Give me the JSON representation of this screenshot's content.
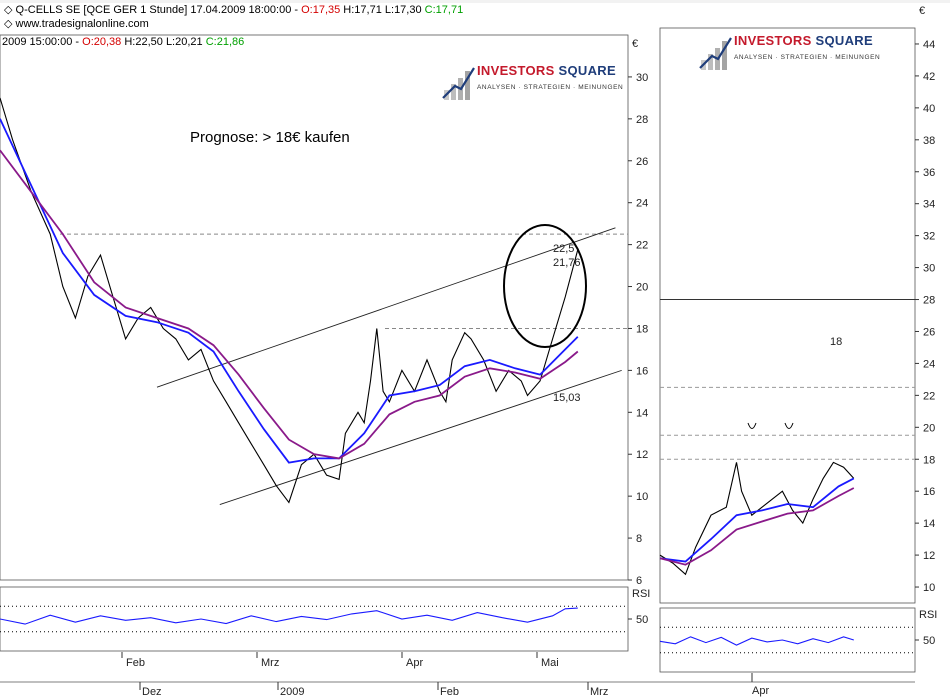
{
  "chart_data": [
    {
      "type": "line",
      "title": "Q-CELLS SE [QCE GER  1 Stunde] 17.04.2009 18:00:00 -",
      "ohlc": {
        "open": "O:17,35",
        "high": "H:17,71",
        "low": "L:17,30",
        "close": "C:17,71"
      },
      "website": "www.tradesignalonline.com",
      "subheader": {
        "date": "2009 15:00:00 -",
        "open": "O:20,38",
        "high": "H:22,50",
        "low": "L:20,21",
        "close": "C:21,86"
      },
      "annotation": "Prognose: > 18€ kaufen",
      "currency": "€",
      "y_ticks": [
        "6",
        "8",
        "10",
        "12",
        "14",
        "16",
        "18",
        "20",
        "22",
        "24",
        "26",
        "28",
        "30"
      ],
      "x_ticks": [
        "Feb",
        "Mrz",
        "Apr",
        "Mai"
      ],
      "x_ticks_bottom": [
        "Dez",
        "2009",
        "Feb",
        "Mrz",
        "Apr"
      ],
      "ylim": [
        6,
        32
      ],
      "price_labels": [
        "22,5",
        "21,76",
        "15,03"
      ],
      "levels": [
        22.5,
        18
      ],
      "channel_upper": [
        [
          0.25,
          15.2
        ],
        [
          0.98,
          22.8
        ]
      ],
      "channel_lower": [
        [
          0.35,
          9.6
        ],
        [
          0.99,
          16.0
        ]
      ],
      "series": [
        {
          "name": "Price",
          "color": "#000000",
          "values": [
            [
              0.0,
              29.0
            ],
            [
              0.02,
              27.0
            ],
            [
              0.05,
              24.5
            ],
            [
              0.08,
              22.5
            ],
            [
              0.1,
              20.0
            ],
            [
              0.12,
              18.5
            ],
            [
              0.14,
              20.5
            ],
            [
              0.16,
              21.5
            ],
            [
              0.18,
              19.5
            ],
            [
              0.2,
              17.5
            ],
            [
              0.22,
              18.5
            ],
            [
              0.24,
              19.0
            ],
            [
              0.26,
              18.0
            ],
            [
              0.28,
              17.5
            ],
            [
              0.3,
              16.5
            ],
            [
              0.32,
              17.0
            ],
            [
              0.34,
              15.5
            ],
            [
              0.36,
              14.5
            ],
            [
              0.38,
              13.5
            ],
            [
              0.4,
              12.5
            ],
            [
              0.42,
              11.5
            ],
            [
              0.44,
              10.5
            ],
            [
              0.46,
              9.7
            ],
            [
              0.48,
              11.5
            ],
            [
              0.5,
              12.0
            ],
            [
              0.52,
              11.0
            ],
            [
              0.54,
              10.8
            ],
            [
              0.55,
              13.0
            ],
            [
              0.57,
              14.0
            ],
            [
              0.58,
              13.5
            ],
            [
              0.59,
              15.5
            ],
            [
              0.6,
              18.0
            ],
            [
              0.61,
              15.0
            ],
            [
              0.62,
              14.5
            ],
            [
              0.64,
              16.0
            ],
            [
              0.66,
              15.0
            ],
            [
              0.68,
              16.5
            ],
            [
              0.7,
              15.0
            ],
            [
              0.71,
              14.5
            ],
            [
              0.72,
              16.5
            ],
            [
              0.74,
              17.8
            ],
            [
              0.75,
              17.5
            ],
            [
              0.77,
              16.5
            ],
            [
              0.79,
              15.0
            ],
            [
              0.81,
              16.0
            ],
            [
              0.83,
              15.5
            ],
            [
              0.84,
              14.8
            ],
            [
              0.86,
              15.5
            ],
            [
              0.88,
              17.5
            ],
            [
              0.9,
              19.5
            ],
            [
              0.92,
              21.76
            ]
          ]
        },
        {
          "name": "MA fast",
          "color": "#1a1aff",
          "values": [
            [
              0.0,
              28.0
            ],
            [
              0.05,
              24.8
            ],
            [
              0.1,
              21.6
            ],
            [
              0.15,
              19.6
            ],
            [
              0.2,
              18.6
            ],
            [
              0.25,
              18.3
            ],
            [
              0.3,
              17.8
            ],
            [
              0.34,
              16.9
            ],
            [
              0.38,
              15.0
            ],
            [
              0.42,
              13.2
            ],
            [
              0.46,
              11.6
            ],
            [
              0.5,
              11.8
            ],
            [
              0.54,
              11.8
            ],
            [
              0.58,
              13.0
            ],
            [
              0.62,
              14.8
            ],
            [
              0.66,
              15.0
            ],
            [
              0.7,
              15.3
            ],
            [
              0.74,
              16.2
            ],
            [
              0.78,
              16.5
            ],
            [
              0.82,
              16.1
            ],
            [
              0.86,
              15.8
            ],
            [
              0.9,
              17.0
            ],
            [
              0.92,
              17.6
            ]
          ]
        },
        {
          "name": "MA slow",
          "color": "#8a1a8a",
          "values": [
            [
              0.0,
              26.5
            ],
            [
              0.05,
              24.5
            ],
            [
              0.1,
              22.5
            ],
            [
              0.15,
              20.2
            ],
            [
              0.2,
              19.0
            ],
            [
              0.25,
              18.5
            ],
            [
              0.3,
              18.0
            ],
            [
              0.34,
              17.2
            ],
            [
              0.38,
              15.8
            ],
            [
              0.42,
              14.2
            ],
            [
              0.46,
              12.7
            ],
            [
              0.5,
              12.0
            ],
            [
              0.54,
              11.8
            ],
            [
              0.58,
              12.5
            ],
            [
              0.62,
              13.9
            ],
            [
              0.66,
              14.5
            ],
            [
              0.7,
              14.8
            ],
            [
              0.74,
              15.7
            ],
            [
              0.78,
              16.1
            ],
            [
              0.82,
              15.9
            ],
            [
              0.86,
              15.6
            ],
            [
              0.9,
              16.4
            ],
            [
              0.92,
              16.9
            ]
          ]
        }
      ]
    },
    {
      "type": "line",
      "title": "RSI",
      "y_ticks": [
        "50"
      ],
      "ylim": [
        0,
        100
      ],
      "series": [
        {
          "name": "RSI",
          "color": "#1a1aff",
          "values": [
            [
              0.0,
              50
            ],
            [
              0.04,
              42
            ],
            [
              0.08,
              56
            ],
            [
              0.12,
              45
            ],
            [
              0.16,
              55
            ],
            [
              0.2,
              48
            ],
            [
              0.24,
              52
            ],
            [
              0.28,
              44
            ],
            [
              0.32,
              50
            ],
            [
              0.36,
              43
            ],
            [
              0.4,
              55
            ],
            [
              0.44,
              46
            ],
            [
              0.48,
              54
            ],
            [
              0.52,
              49
            ],
            [
              0.56,
              58
            ],
            [
              0.6,
              63
            ],
            [
              0.64,
              50
            ],
            [
              0.68,
              56
            ],
            [
              0.72,
              48
            ],
            [
              0.76,
              60
            ],
            [
              0.8,
              52
            ],
            [
              0.84,
              45
            ],
            [
              0.88,
              55
            ],
            [
              0.9,
              66
            ],
            [
              0.92,
              67
            ]
          ]
        }
      ]
    },
    {
      "type": "line",
      "currency": "€",
      "y_ticks": [
        "10",
        "12",
        "14",
        "16",
        "18",
        "20",
        "22",
        "24",
        "26",
        "28",
        "30",
        "32",
        "34",
        "36",
        "38",
        "40",
        "42",
        "44"
      ],
      "x_ticks": [
        "Apr"
      ],
      "ylim": [
        9,
        45
      ],
      "levels": [
        28,
        22.5,
        19.5,
        18
      ],
      "price_labels": [
        "18"
      ],
      "series": [
        {
          "name": "Price",
          "color": "#000000",
          "values": [
            [
              0.0,
              12.0
            ],
            [
              0.05,
              11.5
            ],
            [
              0.1,
              10.8
            ],
            [
              0.14,
              12.5
            ],
            [
              0.2,
              14.5
            ],
            [
              0.26,
              15.0
            ],
            [
              0.3,
              17.8
            ],
            [
              0.32,
              16.0
            ],
            [
              0.36,
              14.5
            ],
            [
              0.4,
              15.0
            ],
            [
              0.44,
              15.5
            ],
            [
              0.48,
              16.0
            ],
            [
              0.52,
              14.8
            ],
            [
              0.56,
              14.0
            ],
            [
              0.6,
              15.5
            ],
            [
              0.64,
              16.8
            ],
            [
              0.68,
              17.8
            ],
            [
              0.72,
              17.5
            ],
            [
              0.76,
              16.8
            ]
          ]
        },
        {
          "name": "MA fast",
          "color": "#1a1aff",
          "values": [
            [
              0.0,
              11.8
            ],
            [
              0.1,
              11.6
            ],
            [
              0.2,
              13.0
            ],
            [
              0.3,
              14.5
            ],
            [
              0.4,
              14.8
            ],
            [
              0.5,
              15.2
            ],
            [
              0.6,
              15.0
            ],
            [
              0.7,
              16.3
            ],
            [
              0.76,
              16.8
            ]
          ]
        },
        {
          "name": "MA slow",
          "color": "#8a1a8a",
          "values": [
            [
              0.0,
              11.8
            ],
            [
              0.1,
              11.4
            ],
            [
              0.2,
              12.3
            ],
            [
              0.3,
              13.6
            ],
            [
              0.4,
              14.1
            ],
            [
              0.5,
              14.6
            ],
            [
              0.6,
              14.8
            ],
            [
              0.7,
              15.7
            ],
            [
              0.76,
              16.2
            ]
          ]
        }
      ]
    },
    {
      "type": "line",
      "title": "RSI",
      "y_ticks": [
        "50"
      ],
      "ylim": [
        0,
        100
      ],
      "series": [
        {
          "name": "RSI",
          "color": "#1a1aff",
          "values": [
            [
              0.0,
              48
            ],
            [
              0.06,
              44
            ],
            [
              0.12,
              55
            ],
            [
              0.18,
              46
            ],
            [
              0.24,
              54
            ],
            [
              0.3,
              42
            ],
            [
              0.36,
              53
            ],
            [
              0.42,
              47
            ],
            [
              0.48,
              50
            ],
            [
              0.54,
              44
            ],
            [
              0.6,
              52
            ],
            [
              0.66,
              46
            ],
            [
              0.72,
              55
            ],
            [
              0.76,
              50
            ]
          ]
        }
      ]
    }
  ],
  "logo": {
    "name": "INVESTORS",
    "accent": "SQUARE",
    "tagline": "ANALYSEN · STRATEGIEN · MEINUNGEN",
    "mirror": "INVESTORS SQUARE"
  },
  "colors": {
    "price": "#000000",
    "ma_fast": "#1a1aff",
    "ma_slow": "#8a1a8a",
    "open": "#d40000",
    "close": "#00a000"
  }
}
